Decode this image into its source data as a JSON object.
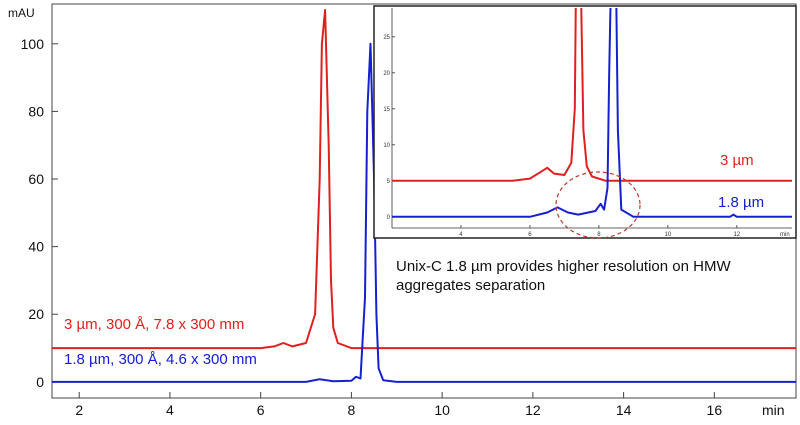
{
  "chart_data": [
    {
      "type": "line",
      "title": "",
      "xlabel": "",
      "ylabel": "",
      "x_unit": "min",
      "y_unit": "mAU",
      "xlim": [
        1.4,
        17.8
      ],
      "ylim": [
        -3,
        110
      ],
      "x_ticks": [
        2,
        4,
        6,
        8,
        10,
        12,
        14,
        16
      ],
      "y_ticks": [
        0,
        20,
        40,
        60,
        80,
        100
      ],
      "grid": false,
      "series": [
        {
          "name": "3 µm, 300 Å, 7.8 x 300 mm",
          "color": "#e0201f",
          "x": [
            1.4,
            6.0,
            6.3,
            6.5,
            6.7,
            7.0,
            7.2,
            7.3,
            7.35,
            7.42,
            7.5,
            7.55,
            7.6,
            7.7,
            8.0,
            17.8
          ],
          "y": [
            10.0,
            10.0,
            10.5,
            11.5,
            10.5,
            11.5,
            20,
            60,
            100,
            110,
            70,
            30,
            16,
            11.5,
            10.0,
            10.0
          ]
        },
        {
          "name": "1.8 µm, 300 Å, 4.6 x 300 mm",
          "color": "#1620d0",
          "x": [
            1.4,
            7.0,
            7.3,
            7.6,
            8.0,
            8.1,
            8.2,
            8.3,
            8.35,
            8.42,
            8.5,
            8.55,
            8.6,
            8.7,
            9.0,
            17.8
          ],
          "y": [
            0.0,
            0.0,
            0.8,
            0.2,
            0.3,
            1.5,
            1.0,
            25,
            80,
            100,
            60,
            20,
            4,
            0.5,
            0.0,
            0.0
          ]
        }
      ]
    },
    {
      "type": "line",
      "title": "",
      "xlim": [
        2.0,
        13.6
      ],
      "ylim": [
        -1,
        29
      ],
      "x_ticks": [
        4,
        6,
        8,
        10,
        12
      ],
      "y_ticks": [
        0,
        5,
        10,
        15,
        20,
        25
      ],
      "x_unit": "min",
      "grid": false,
      "series": [
        {
          "name": "3 µm",
          "color": "#e0201f",
          "x": [
            2.0,
            5.5,
            6.0,
            6.3,
            6.5,
            6.7,
            7.0,
            7.2,
            7.3,
            7.35,
            7.45,
            7.55,
            7.65,
            7.8,
            8.2,
            13.6
          ],
          "y": [
            5.0,
            5.0,
            5.3,
            6.2,
            6.8,
            6.0,
            5.8,
            7.5,
            15,
            40,
            40,
            12,
            7.0,
            5.6,
            5.0,
            5.0
          ]
        },
        {
          "name": "1.8 µm",
          "color": "#1620d0",
          "x": [
            2.0,
            6.0,
            6.5,
            6.8,
            7.1,
            7.4,
            7.9,
            8.05,
            8.15,
            8.25,
            8.3,
            8.38,
            8.48,
            8.55,
            8.65,
            9.0,
            11.8,
            11.9,
            12.0,
            13.6
          ],
          "y": [
            0.0,
            0.0,
            0.6,
            1.3,
            0.6,
            0.3,
            0.8,
            1.8,
            1.0,
            4.0,
            20,
            40,
            40,
            12,
            1.0,
            0.0,
            0.0,
            0.3,
            0.0,
            0.0
          ]
        }
      ]
    }
  ],
  "annotation": {
    "line1": "Unix-C 1.8 µm provides higher resolution on HMW",
    "line2": "aggregates separation"
  },
  "highlight_color": "#c0392b"
}
